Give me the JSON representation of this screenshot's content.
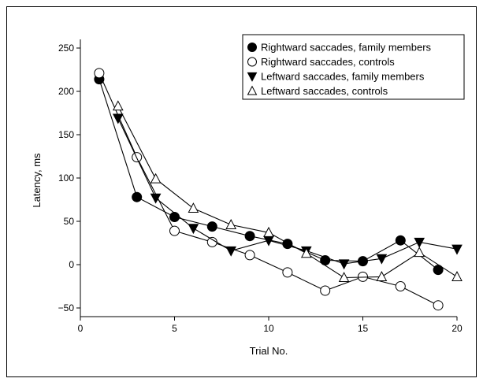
{
  "chart_data": {
    "type": "line",
    "title": "",
    "xlabel": "Trial No.",
    "ylabel": "Latency, ms",
    "xlim": [
      0,
      20
    ],
    "ylim": [
      -60,
      260
    ],
    "xticks": [
      "0",
      "5",
      "10",
      "15",
      "20"
    ],
    "yticks": [
      "−50",
      "0",
      "50",
      "100",
      "150",
      "200",
      "250"
    ],
    "grid": false,
    "legend_position": "top-right",
    "series": [
      {
        "name": "Rightward saccades, family members",
        "marker": "filled-circle",
        "x": [
          1,
          3,
          5,
          7,
          9,
          11,
          13,
          15,
          17,
          19
        ],
        "y": [
          214,
          78,
          55,
          44,
          33,
          24,
          5,
          4,
          28,
          -6
        ]
      },
      {
        "name": "Rightward saccades, controls",
        "marker": "open-circle",
        "x": [
          1,
          3,
          5,
          7,
          9,
          11,
          13,
          15,
          17,
          19
        ],
        "y": [
          221,
          124,
          39,
          26,
          11,
          -9,
          -30,
          -14,
          -25,
          -47
        ]
      },
      {
        "name": "Leftward saccades, family members",
        "marker": "filled-triangle-down",
        "x": [
          2,
          4,
          6,
          8,
          10,
          12,
          14,
          16,
          18,
          20
        ],
        "y": [
          169,
          77,
          42,
          16,
          28,
          16,
          1,
          7,
          26,
          18
        ]
      },
      {
        "name": "Leftward saccades, controls",
        "marker": "open-triangle-up",
        "x": [
          2,
          4,
          6,
          8,
          10,
          12,
          14,
          16,
          18,
          20
        ],
        "y": [
          183,
          99,
          65,
          46,
          37,
          13,
          -15,
          -14,
          14,
          -14
        ]
      }
    ]
  }
}
